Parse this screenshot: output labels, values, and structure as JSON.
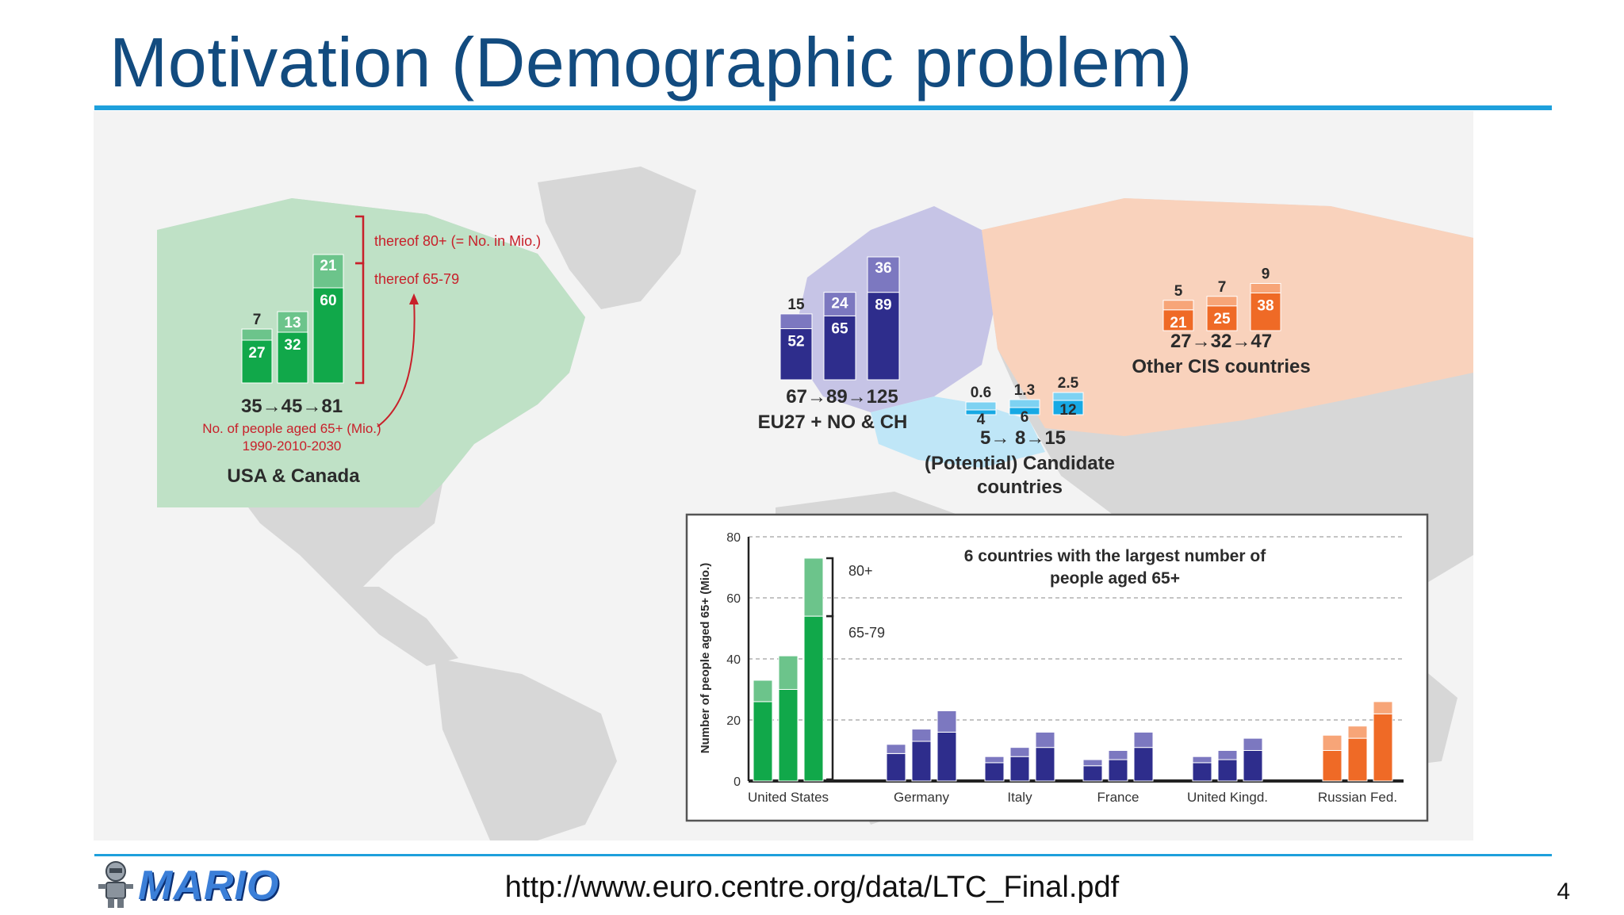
{
  "slide": {
    "title": "Motivation (Demographic problem)",
    "footer_url": "http://www.euro.centre.org/data/LTC_Final.pdf",
    "page_number": "4",
    "logo_text": "MARIO"
  },
  "colors": {
    "title": "#124b7f",
    "rule": "#1ea0dc",
    "map_land": "#d7d7d7",
    "map_sea": "#f3f3f3",
    "na_region": "#bfe1c6",
    "eu_region": "#c6c4e6",
    "cis_region": "#f9d2bc",
    "cand_region": "#bfe6f7",
    "annot_red": "#c8202a"
  },
  "chart_data": [
    {
      "type": "bar",
      "group": "na",
      "categories": [
        "1990",
        "2010",
        "2030"
      ],
      "series": [
        {
          "name": "thereof 65-79",
          "values": [
            27,
            32,
            60
          ]
        },
        {
          "name": "thereof 80+ (= No. in Mio.)",
          "values": [
            7,
            13,
            21
          ]
        }
      ],
      "totals_label": "35→45→81",
      "region_label": "USA & Canada",
      "note_line1": "No. of people aged 65+ (Mio.)",
      "note_line2": "1990-2010-2030",
      "colors": {
        "base": "#11a84a",
        "top": "#6cc48b"
      }
    },
    {
      "type": "bar",
      "group": "eu",
      "categories": [
        "1990",
        "2010",
        "2030"
      ],
      "series": [
        {
          "values": [
            52,
            65,
            89
          ]
        },
        {
          "values": [
            15,
            24,
            36
          ]
        }
      ],
      "totals_label": "67→89→125",
      "region_label": "EU27 + NO & CH",
      "colors": {
        "base": "#2e2d8c",
        "top": "#7c78c0"
      }
    },
    {
      "type": "bar",
      "group": "cand",
      "categories": [
        "1990",
        "2010",
        "2030"
      ],
      "series": [
        {
          "values": [
            4,
            6,
            12
          ]
        },
        {
          "values": [
            0.6,
            1.3,
            2.5
          ]
        }
      ],
      "totals_label": "5→ 8→15",
      "region_label_line1": "(Potential) Candidate",
      "region_label_line2": "countries",
      "colors": {
        "base": "#17a9e4",
        "top": "#7dd2f2"
      }
    },
    {
      "type": "bar",
      "group": "cis",
      "categories": [
        "1990",
        "2010",
        "2030"
      ],
      "series": [
        {
          "values": [
            21,
            25,
            38
          ]
        },
        {
          "values": [
            5,
            7,
            9
          ]
        }
      ],
      "totals_label": "27→32→47",
      "region_label": "Other CIS countries",
      "colors": {
        "base": "#ef6a26",
        "top": "#f7a578"
      }
    },
    {
      "type": "bar",
      "group": "inset",
      "title_line1": "6 countries with the largest number of",
      "title_line2": "people aged 65+",
      "ylabel": "Number of people aged 65+ (Mio.)",
      "ylim": [
        0,
        80
      ],
      "yticks": [
        0,
        20,
        40,
        60,
        80
      ],
      "grid": true,
      "label_80": "80+",
      "label_6579": "65-79",
      "categories": [
        "United States",
        "Germany",
        "Italy",
        "France",
        "United Kingd.",
        "Russian Fed."
      ],
      "series": [
        {
          "name": "65-79",
          "values": [
            [
              26,
              30,
              54
            ],
            [
              9,
              13,
              16
            ],
            [
              6,
              8,
              11
            ],
            [
              5,
              7,
              11
            ],
            [
              6,
              7,
              10
            ],
            [
              10,
              14,
              22
            ]
          ]
        },
        {
          "name": "80+",
          "values": [
            [
              7,
              11,
              19
            ],
            [
              3,
              4,
              7
            ],
            [
              2,
              3,
              5
            ],
            [
              2,
              3,
              5
            ],
            [
              2,
              3,
              4
            ],
            [
              5,
              4,
              4
            ]
          ]
        }
      ],
      "group_colors": [
        {
          "base": "#11a84a",
          "top": "#6cc48b"
        },
        {
          "base": "#2e2d8c",
          "top": "#7c78c0"
        },
        {
          "base": "#2e2d8c",
          "top": "#7c78c0"
        },
        {
          "base": "#2e2d8c",
          "top": "#7c78c0"
        },
        {
          "base": "#2e2d8c",
          "top": "#7c78c0"
        },
        {
          "base": "#ef6a26",
          "top": "#f7a578"
        }
      ]
    }
  ]
}
